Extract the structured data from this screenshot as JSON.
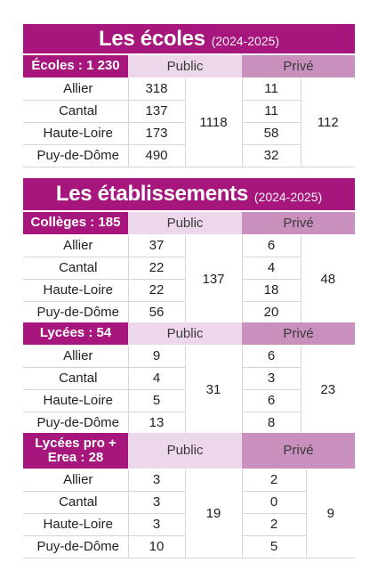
{
  "ecoles": {
    "title": "Les écoles",
    "year": "(2024-2025)",
    "header": {
      "label": "Écoles : 1 230",
      "public": "Public",
      "prive": "Privé"
    },
    "rows": [
      {
        "name": "Allier",
        "public": "318",
        "prive": "11"
      },
      {
        "name": "Cantal",
        "public": "137",
        "prive": "11"
      },
      {
        "name": "Haute-Loire",
        "public": "173",
        "prive": "58"
      },
      {
        "name": "Puy-de-Dôme",
        "public": "490",
        "prive": "32"
      }
    ],
    "total_public": "1118",
    "total_prive": "112"
  },
  "etablissements": {
    "title": "Les établissements",
    "year": "(2024-2025)"
  },
  "colleges": {
    "header": {
      "label": "Collèges : 185",
      "public": "Public",
      "prive": "Privé"
    },
    "rows": [
      {
        "name": "Allier",
        "public": "37",
        "prive": "6"
      },
      {
        "name": "Cantal",
        "public": "22",
        "prive": "4"
      },
      {
        "name": "Haute-Loire",
        "public": "22",
        "prive": "18"
      },
      {
        "name": "Puy-de-Dôme",
        "public": "56",
        "prive": "20"
      }
    ],
    "total_public": "137",
    "total_prive": "48"
  },
  "lycees": {
    "header": {
      "label": "Lycées : 54",
      "public": "Public",
      "prive": "Privé"
    },
    "rows": [
      {
        "name": "Allier",
        "public": "9",
        "prive": "6"
      },
      {
        "name": "Cantal",
        "public": "4",
        "prive": "3"
      },
      {
        "name": "Haute-Loire",
        "public": "5",
        "prive": "6"
      },
      {
        "name": "Puy-de-Dôme",
        "public": "13",
        "prive": "8"
      }
    ],
    "total_public": "31",
    "total_prive": "23"
  },
  "lycees_pro": {
    "header": {
      "label_line1": "Lycées pro +",
      "label_line2": "Erea : 28",
      "public": "Public",
      "prive": "Privé"
    },
    "rows": [
      {
        "name": "Allier",
        "public": "3",
        "prive": "2"
      },
      {
        "name": "Cantal",
        "public": "3",
        "prive": "0"
      },
      {
        "name": "Haute-Loire",
        "public": "3",
        "prive": "2"
      },
      {
        "name": "Puy-de-Dôme",
        "public": "10",
        "prive": "5"
      }
    ],
    "total_public": "19",
    "total_prive": "9"
  },
  "colors": {
    "magenta": "#a6167c",
    "public_bg": "#ecd8ea",
    "prive_bg": "#c990bd",
    "rule": "#d6d6d6"
  }
}
